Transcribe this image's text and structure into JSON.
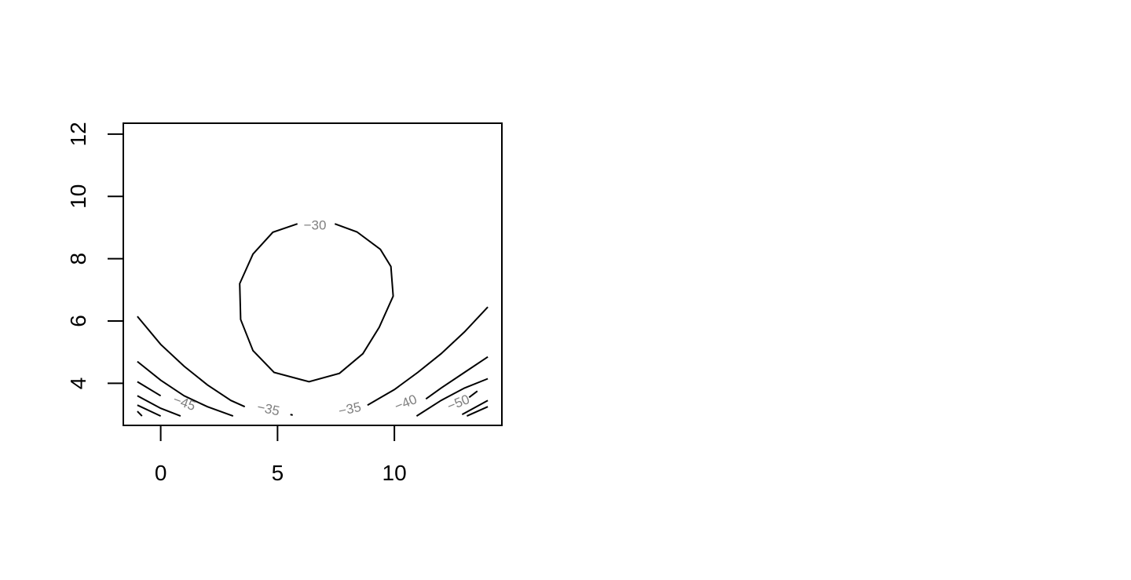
{
  "chart_data": {
    "type": "contour",
    "title": "",
    "xlabel": "",
    "ylabel": "",
    "xlim": [
      -1.6,
      14.6
    ],
    "ylim": [
      2.65,
      12.35
    ],
    "x_ticks": [
      0,
      5,
      10
    ],
    "y_ticks": [
      4,
      6,
      8,
      10,
      12
    ],
    "x_tick_labels": [
      "0",
      "5",
      "10"
    ],
    "y_tick_labels": [
      "4",
      "6",
      "8",
      "10",
      "12"
    ],
    "grid": false,
    "legend": "none",
    "contours": [
      {
        "level_label": "-30",
        "label_at": [
          6.6,
          9.05
        ],
        "label_angle": 0,
        "segments": [
          [
            [
              5.85,
              9.12
            ],
            [
              4.8,
              8.85
            ],
            [
              3.95,
              8.15
            ],
            [
              3.38,
              7.2
            ],
            [
              3.42,
              6.05
            ],
            [
              3.95,
              5.05
            ],
            [
              4.85,
              4.35
            ],
            [
              6.35,
              4.05
            ],
            [
              7.65,
              4.32
            ],
            [
              8.65,
              4.95
            ],
            [
              9.35,
              5.8
            ],
            [
              9.95,
              6.8
            ],
            [
              9.85,
              7.75
            ],
            [
              9.4,
              8.3
            ],
            [
              8.4,
              8.86
            ],
            [
              7.45,
              9.12
            ]
          ]
        ]
      },
      {
        "level_label": "-35",
        "segments": [
          [
            [
              -1,
              6.15
            ],
            [
              0,
              5.25
            ],
            [
              1,
              4.55
            ],
            [
              2,
              3.95
            ],
            [
              3,
              3.45
            ],
            [
              3.6,
              3.25
            ]
          ],
          [
            [
              5.55,
              3.0
            ],
            [
              5.65,
              2.98
            ]
          ],
          [
            [
              8.85,
              3.3
            ],
            [
              10,
              3.8
            ],
            [
              11,
              4.35
            ],
            [
              12,
              4.95
            ],
            [
              13,
              5.65
            ],
            [
              14,
              6.45
            ]
          ]
        ]
      },
      {
        "level_label": "-40",
        "segments": [
          [
            [
              -1,
              4.7
            ],
            [
              0,
              4.1
            ],
            [
              1,
              3.6
            ],
            [
              2,
              3.25
            ],
            [
              3.1,
              2.95
            ]
          ],
          [
            [
              11.35,
              3.5
            ],
            [
              12,
              3.85
            ],
            [
              13,
              4.35
            ],
            [
              14,
              4.85
            ]
          ],
          [
            [
              10.95,
              2.95
            ],
            [
              12,
              3.45
            ],
            [
              13,
              3.85
            ],
            [
              14,
              4.15
            ]
          ]
        ]
      },
      {
        "level_label": "-45",
        "segments": [
          [
            [
              -1,
              4.05
            ],
            [
              0,
              3.6
            ]
          ],
          [
            [
              -1,
              3.6
            ],
            [
              0,
              3.2
            ],
            [
              0.85,
              2.95
            ]
          ],
          [
            [
              -1,
              3.3
            ],
            [
              0.0,
              2.95
            ]
          ],
          [
            [
              -1,
              3.1
            ],
            [
              -0.8,
              2.95
            ]
          ]
        ]
      },
      {
        "level_label": "-50",
        "segments": [
          [
            [
              13.2,
              3.55
            ],
            [
              13.55,
              3.75
            ]
          ],
          [
            [
              12.9,
              3.0
            ],
            [
              14,
              3.45
            ]
          ],
          [
            [
              13.1,
              2.95
            ],
            [
              14,
              3.25
            ]
          ]
        ]
      }
    ],
    "contour_labels": [
      {
        "text": "-30",
        "x": 6.6,
        "y": 9.05,
        "angle": 0
      },
      {
        "text": "-35",
        "x": 4.6,
        "y": 3.15,
        "angle": 12
      },
      {
        "text": "-35",
        "x": 8.1,
        "y": 3.15,
        "angle": -12
      },
      {
        "text": "-40",
        "x": 10.5,
        "y": 3.35,
        "angle": -22
      },
      {
        "text": "-45",
        "x": 1.0,
        "y": 3.35,
        "angle": 20
      },
      {
        "text": "-50",
        "x": 12.75,
        "y": 3.35,
        "angle": -22
      }
    ]
  }
}
